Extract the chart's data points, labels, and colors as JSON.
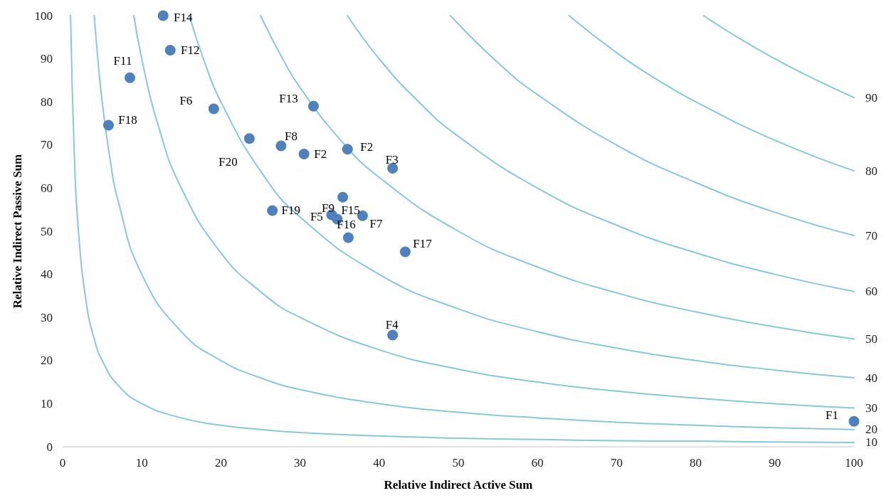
{
  "chart_data": {
    "type": "scatter",
    "xlabel": "Relative Indirect Active Sum",
    "ylabel": "Relative Indirect Passive Sum",
    "xlim": [
      0,
      100
    ],
    "ylim": [
      0,
      100
    ],
    "xticks": [
      0,
      10,
      20,
      30,
      40,
      50,
      60,
      70,
      80,
      90,
      100
    ],
    "yticks": [
      0,
      10,
      20,
      30,
      40,
      50,
      60,
      70,
      80,
      90,
      100
    ],
    "grid": false,
    "legend": false,
    "marker": "circle",
    "series": [
      {
        "type": "line",
        "marker": "none",
        "name": "10",
        "color": "#86c9da",
        "x": [
          1,
          1.5,
          2,
          3,
          4,
          5,
          7,
          10,
          15,
          20,
          25,
          30,
          40,
          50,
          60,
          70,
          80,
          90,
          100
        ],
        "values": [
          100,
          66.7,
          50,
          33.3,
          25,
          20,
          14.3,
          10,
          6.7,
          5,
          4,
          3.3,
          2.5,
          2,
          1.7,
          1.4,
          1.3,
          1.1,
          1
        ]
      },
      {
        "type": "line",
        "marker": "none",
        "name": "20",
        "color": "#86c9da",
        "x": [
          4,
          4.5,
          5,
          6,
          7,
          10,
          15,
          20,
          25,
          30,
          40,
          50,
          60,
          70,
          80,
          90,
          100
        ],
        "values": [
          100,
          88.9,
          80,
          66.7,
          57.1,
          40,
          26.7,
          20,
          16,
          13.3,
          10,
          8,
          6.7,
          5.7,
          5,
          4.4,
          4
        ]
      },
      {
        "type": "line",
        "marker": "none",
        "name": "30",
        "color": "#86c9da",
        "x": [
          9,
          10,
          12,
          15,
          20,
          25,
          30,
          40,
          50,
          60,
          70,
          80,
          90,
          100
        ],
        "values": [
          100,
          90,
          75,
          60,
          45,
          36,
          30,
          22.5,
          18,
          15,
          12.9,
          11.3,
          10,
          9
        ]
      },
      {
        "type": "line",
        "marker": "none",
        "name": "40",
        "color": "#86c9da",
        "x": [
          16,
          18,
          20,
          25,
          30,
          40,
          50,
          60,
          70,
          80,
          90,
          100
        ],
        "values": [
          100,
          88.9,
          80,
          64,
          53.3,
          40,
          32,
          26.7,
          22.9,
          20,
          17.8,
          16
        ]
      },
      {
        "type": "line",
        "marker": "none",
        "name": "50",
        "color": "#86c9da",
        "x": [
          25,
          28,
          30,
          35,
          40,
          50,
          60,
          70,
          80,
          90,
          100
        ],
        "values": [
          100,
          89.3,
          83.3,
          71.4,
          62.5,
          50,
          41.7,
          35.7,
          31.3,
          27.8,
          25
        ]
      },
      {
        "type": "line",
        "marker": "none",
        "name": "60",
        "color": "#86c9da",
        "x": [
          36,
          40,
          45,
          50,
          60,
          70,
          80,
          90,
          100
        ],
        "values": [
          100,
          90,
          80,
          72,
          60,
          51.4,
          45,
          40,
          36
        ]
      },
      {
        "type": "line",
        "marker": "none",
        "name": "70",
        "color": "#86c9da",
        "x": [
          49,
          55,
          60,
          70,
          80,
          90,
          100
        ],
        "values": [
          100,
          89.1,
          81.7,
          70,
          61.3,
          54.4,
          49
        ]
      },
      {
        "type": "line",
        "marker": "none",
        "name": "80",
        "color": "#86c9da",
        "x": [
          64,
          70,
          75,
          80,
          90,
          100
        ],
        "values": [
          100,
          91.4,
          85.3,
          80,
          71.1,
          64
        ]
      },
      {
        "type": "line",
        "marker": "none",
        "name": "90",
        "color": "#86c9da",
        "x": [
          81,
          85,
          90,
          95,
          100
        ],
        "values": [
          100,
          95.3,
          90,
          85.3,
          81
        ]
      },
      {
        "color": "#4f81bd",
        "x": [
          12.7,
          13.6,
          8.5,
          19.1,
          5.8,
          31.7,
          23.6,
          27.6,
          30.5,
          36,
          41.7,
          26.5,
          34,
          34.7,
          35.4,
          36.1,
          37.9,
          43.3,
          41.7,
          100
        ],
        "values": [
          100,
          92,
          85.6,
          78.4,
          74.6,
          79,
          71.5,
          69.8,
          67.9,
          69,
          64.6,
          54.8,
          53.8,
          52.8,
          57.9,
          48.5,
          53.6,
          45.2,
          25.9,
          5.9
        ]
      }
    ],
    "annotations": [
      {
        "text": "F14",
        "x": 12.7,
        "y": 100
      },
      {
        "text": "F12",
        "x": 13.6,
        "y": 92
      },
      {
        "text": "F11",
        "x": 8.5,
        "y": 85.6
      },
      {
        "text": "F6",
        "x": 19.1,
        "y": 78.4
      },
      {
        "text": "F18",
        "x": 5.8,
        "y": 74.6
      },
      {
        "text": "F13",
        "x": 31.7,
        "y": 79
      },
      {
        "text": "F20",
        "x": 23.6,
        "y": 71.5
      },
      {
        "text": "F8",
        "x": 27.6,
        "y": 69.8
      },
      {
        "text": "F2",
        "x": 30.5,
        "y": 67.9
      },
      {
        "text": "F2",
        "x": 36,
        "y": 69
      },
      {
        "text": "F3",
        "x": 41.7,
        "y": 64.6
      },
      {
        "text": "F19",
        "x": 26.5,
        "y": 54.8
      },
      {
        "text": "F9",
        "x": 34,
        "y": 53.8
      },
      {
        "text": "F5",
        "x": 34.7,
        "y": 52.8
      },
      {
        "text": "F15",
        "x": 35.4,
        "y": 57.9
      },
      {
        "text": "F16",
        "x": 36.1,
        "y": 48.5
      },
      {
        "text": "F7",
        "x": 37.9,
        "y": 53.6
      },
      {
        "text": "F17",
        "x": 43.3,
        "y": 45.2
      },
      {
        "text": "F4",
        "x": 41.7,
        "y": 25.9
      },
      {
        "text": "F1",
        "x": 100,
        "y": 5.9
      }
    ]
  }
}
